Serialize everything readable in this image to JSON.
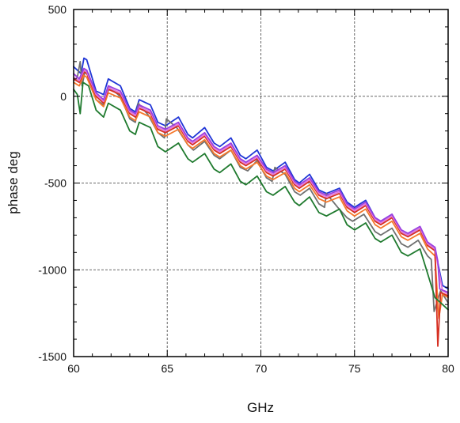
{
  "chart_data": {
    "type": "line",
    "title": "",
    "xlabel": "GHz",
    "ylabel": "phase deg",
    "xlim": [
      60,
      80
    ],
    "ylim": [
      -1500,
      500
    ],
    "x_ticks": [
      60,
      65,
      70,
      75,
      80
    ],
    "y_ticks": [
      500,
      0,
      -500,
      -1000,
      -1500
    ],
    "x_tick_labels": [
      "60",
      "65",
      "70",
      "75",
      "80"
    ],
    "y_tick_labels": [
      "500",
      "0",
      "-500",
      "-1000",
      "-1500"
    ],
    "grid": true,
    "grid_style": "dashed",
    "legend": "none",
    "series": [
      {
        "color": "#1f35d6",
        "x": [
          60.0,
          60.4,
          60.55,
          60.7,
          61.2,
          61.6,
          61.85,
          62.5,
          63.0,
          63.3,
          63.5,
          64.1,
          64.5,
          64.9,
          65.6,
          66.1,
          66.35,
          67.0,
          67.5,
          67.8,
          68.4,
          68.9,
          69.2,
          69.8,
          70.3,
          70.65,
          71.3,
          71.8,
          72.05,
          72.6,
          73.1,
          73.5,
          74.2,
          74.6,
          75.0,
          75.6,
          76.1,
          76.4,
          77.0,
          77.5,
          77.85,
          78.5,
          78.9,
          79.3,
          79.7,
          80.0
        ],
        "values": [
          170,
          130,
          220,
          210,
          30,
          10,
          100,
          60,
          -70,
          -90,
          -20,
          -50,
          -150,
          -170,
          -120,
          -220,
          -240,
          -180,
          -270,
          -290,
          -240,
          -340,
          -360,
          -310,
          -410,
          -430,
          -380,
          -480,
          -500,
          -450,
          -540,
          -560,
          -530,
          -610,
          -640,
          -600,
          -700,
          -720,
          -680,
          -780,
          -800,
          -760,
          -850,
          -880,
          -1090,
          -1110
        ]
      },
      {
        "color": "#707070",
        "x": [
          60.0,
          60.2,
          60.35,
          60.45,
          60.6,
          60.8,
          61.2,
          61.6,
          61.9,
          62.5,
          63.0,
          63.3,
          63.45,
          64.0,
          64.5,
          64.85,
          64.95,
          65.5,
          66.1,
          66.4,
          67.0,
          67.5,
          67.8,
          68.4,
          68.9,
          69.3,
          69.8,
          70.3,
          70.6,
          70.75,
          71.3,
          71.8,
          72.1,
          72.6,
          73.1,
          73.4,
          73.5,
          74.1,
          74.6,
          74.9,
          75.5,
          76.1,
          76.4,
          77.0,
          77.5,
          77.85,
          78.4,
          78.9,
          79.1,
          79.25,
          79.6,
          80.0
        ],
        "values": [
          90,
          110,
          200,
          60,
          140,
          130,
          -20,
          -50,
          50,
          0,
          -130,
          -150,
          -40,
          -110,
          -210,
          -240,
          -130,
          -180,
          -280,
          -310,
          -260,
          -340,
          -360,
          -310,
          -410,
          -430,
          -370,
          -470,
          -490,
          -410,
          -450,
          -550,
          -570,
          -530,
          -620,
          -640,
          -560,
          -640,
          -700,
          -720,
          -680,
          -780,
          -800,
          -760,
          -850,
          -870,
          -830,
          -920,
          -940,
          -1240,
          -1120,
          -1190
        ]
      },
      {
        "color": "#f5782b",
        "x": [
          60.0,
          60.3,
          60.55,
          60.7,
          61.2,
          61.6,
          61.85,
          62.5,
          63.0,
          63.3,
          63.5,
          64.1,
          64.5,
          64.9,
          65.6,
          66.1,
          66.35,
          67.0,
          67.5,
          67.8,
          68.4,
          68.9,
          69.2,
          69.8,
          70.3,
          70.65,
          71.3,
          71.8,
          72.05,
          72.6,
          73.1,
          73.5,
          74.2,
          74.6,
          75.0,
          75.6,
          76.1,
          76.4,
          77.0,
          77.5,
          77.85,
          78.5,
          78.9,
          79.3,
          79.5,
          79.7,
          80.0
        ],
        "values": [
          80,
          60,
          120,
          110,
          -20,
          -60,
          20,
          -10,
          -120,
          -140,
          -90,
          -120,
          -210,
          -230,
          -190,
          -280,
          -300,
          -250,
          -330,
          -350,
          -310,
          -400,
          -420,
          -380,
          -460,
          -480,
          -440,
          -530,
          -550,
          -510,
          -590,
          -610,
          -580,
          -660,
          -690,
          -650,
          -740,
          -760,
          -720,
          -810,
          -830,
          -790,
          -880,
          -920,
          -1280,
          -1140,
          -1160
        ]
      },
      {
        "color": "#d62f22",
        "x": [
          60.0,
          60.3,
          60.55,
          60.7,
          61.2,
          61.6,
          61.85,
          62.5,
          63.0,
          63.3,
          63.5,
          64.1,
          64.5,
          64.9,
          65.6,
          66.1,
          66.35,
          67.0,
          67.5,
          67.8,
          68.4,
          68.9,
          69.2,
          69.8,
          70.3,
          70.65,
          71.3,
          71.8,
          72.05,
          72.6,
          73.1,
          73.5,
          74.2,
          74.6,
          75.0,
          75.6,
          76.1,
          76.4,
          77.0,
          77.5,
          77.85,
          78.5,
          78.9,
          79.3,
          79.45,
          79.6,
          80.0
        ],
        "values": [
          100,
          80,
          140,
          130,
          0,
          -40,
          40,
          10,
          -100,
          -120,
          -70,
          -100,
          -190,
          -210,
          -170,
          -260,
          -280,
          -230,
          -310,
          -330,
          -290,
          -380,
          -400,
          -360,
          -440,
          -460,
          -420,
          -510,
          -530,
          -490,
          -570,
          -590,
          -560,
          -640,
          -670,
          -630,
          -720,
          -740,
          -700,
          -790,
          -810,
          -770,
          -860,
          -890,
          -1440,
          -1130,
          -1150
        ]
      },
      {
        "color": "#e57ad8",
        "x": [
          60.0,
          60.3,
          60.55,
          60.7,
          61.2,
          61.6,
          61.85,
          62.5,
          63.0,
          63.3,
          63.5,
          64.1,
          64.5,
          64.9,
          65.6,
          66.1,
          66.35,
          67.0,
          67.5,
          67.8,
          68.4,
          68.9,
          69.2,
          69.8,
          70.3,
          70.65,
          71.3,
          71.8,
          72.05,
          72.6,
          73.1,
          73.5,
          74.2,
          74.6,
          75.0,
          75.6,
          76.1,
          76.4,
          77.0,
          77.5,
          77.85,
          78.5,
          78.9,
          79.3,
          79.7,
          80.0
        ],
        "values": [
          110,
          90,
          150,
          140,
          10,
          -30,
          50,
          20,
          -90,
          -110,
          -60,
          -90,
          -180,
          -200,
          -160,
          -250,
          -270,
          -220,
          -300,
          -320,
          -280,
          -370,
          -390,
          -350,
          -430,
          -450,
          -410,
          -500,
          -520,
          -480,
          -560,
          -580,
          -550,
          -630,
          -660,
          -620,
          -710,
          -730,
          -690,
          -780,
          -800,
          -760,
          -850,
          -880,
          -1120,
          -1140
        ]
      },
      {
        "color": "#9a3fe0",
        "x": [
          60.0,
          60.3,
          60.55,
          60.7,
          61.2,
          61.6,
          61.85,
          62.5,
          63.0,
          63.3,
          63.5,
          64.1,
          64.5,
          64.9,
          65.6,
          66.1,
          66.35,
          67.0,
          67.5,
          67.8,
          68.4,
          68.9,
          69.2,
          69.8,
          70.3,
          70.65,
          71.3,
          71.8,
          72.05,
          72.6,
          73.1,
          73.5,
          74.2,
          74.6,
          75.0,
          75.6,
          76.1,
          76.4,
          77.0,
          77.5,
          77.85,
          78.5,
          78.9,
          79.3,
          79.45,
          79.55,
          80.0
        ],
        "values": [
          130,
          100,
          160,
          150,
          20,
          -20,
          60,
          30,
          -80,
          -100,
          -50,
          -80,
          -170,
          -190,
          -150,
          -240,
          -260,
          -210,
          -290,
          -310,
          -270,
          -360,
          -380,
          -340,
          -420,
          -440,
          -400,
          -490,
          -510,
          -470,
          -550,
          -570,
          -540,
          -620,
          -650,
          -610,
          -700,
          -720,
          -680,
          -770,
          -790,
          -750,
          -840,
          -870,
          -950,
          -1110,
          -1130
        ]
      },
      {
        "color": "#1f7a2e",
        "x": [
          60.0,
          60.2,
          60.35,
          60.5,
          60.8,
          61.2,
          61.6,
          61.85,
          62.5,
          63.0,
          63.3,
          63.5,
          64.1,
          64.5,
          64.9,
          65.6,
          66.1,
          66.35,
          67.0,
          67.5,
          67.8,
          68.4,
          68.9,
          69.2,
          69.8,
          70.3,
          70.65,
          71.3,
          71.8,
          72.05,
          72.6,
          73.1,
          73.5,
          74.2,
          74.6,
          75.0,
          75.6,
          76.1,
          76.4,
          77.0,
          77.5,
          77.85,
          78.5,
          78.9,
          79.3,
          79.7,
          80.0
        ],
        "values": [
          40,
          10,
          -100,
          80,
          60,
          -80,
          -120,
          -40,
          -80,
          -200,
          -220,
          -150,
          -180,
          -290,
          -320,
          -270,
          -360,
          -380,
          -330,
          -420,
          -440,
          -390,
          -490,
          -510,
          -460,
          -550,
          -570,
          -520,
          -610,
          -630,
          -580,
          -670,
          -690,
          -650,
          -740,
          -770,
          -730,
          -820,
          -840,
          -800,
          -900,
          -920,
          -880,
          -1020,
          -1160,
          -1200,
          -1230
        ]
      }
    ]
  }
}
